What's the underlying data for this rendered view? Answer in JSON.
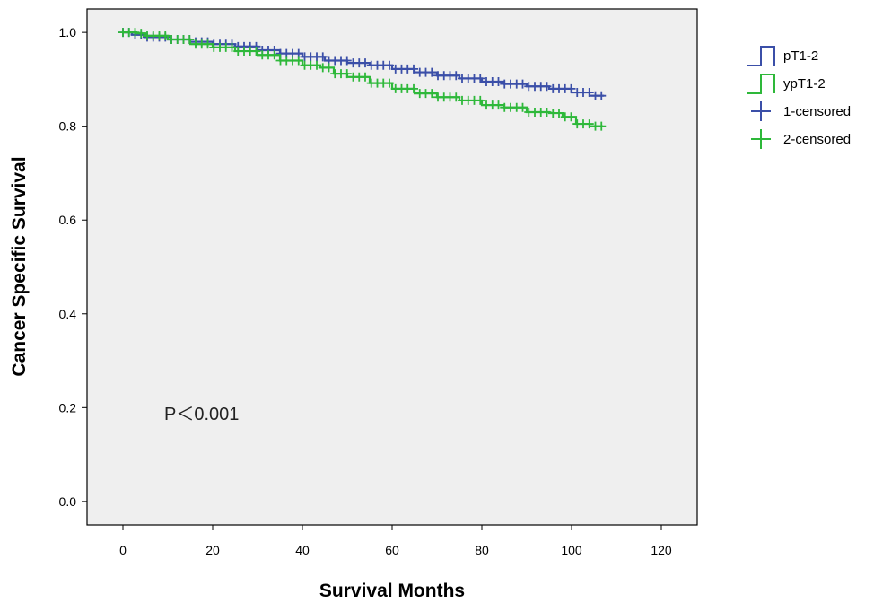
{
  "chart_data": {
    "type": "line",
    "subtype": "kaplan-meier step",
    "xlabel": "Survival Months",
    "ylabel": "Cancer Specific Survival",
    "xlim": [
      -8,
      128
    ],
    "ylim": [
      -0.05,
      1.05
    ],
    "xticks": [
      "0",
      "20",
      "40",
      "60",
      "80",
      "100",
      "120"
    ],
    "yticks": [
      "0.0",
      "0.2",
      "0.4",
      "0.6",
      "0.8",
      "1.0"
    ],
    "xtick_values": [
      0,
      20,
      40,
      60,
      80,
      100,
      120
    ],
    "ytick_values": [
      0.0,
      0.2,
      0.4,
      0.6,
      0.8,
      1.0
    ],
    "grid": false,
    "background": "#efefef",
    "legend_position": "right",
    "annotation": "P＜0.001",
    "series": [
      {
        "name": "pT1-2",
        "color": "#3b4fa8",
        "points": [
          [
            0,
            1.0
          ],
          [
            2,
            0.995
          ],
          [
            5,
            0.99
          ],
          [
            10,
            0.985
          ],
          [
            15,
            0.98
          ],
          [
            20,
            0.975
          ],
          [
            25,
            0.97
          ],
          [
            30,
            0.962
          ],
          [
            35,
            0.955
          ],
          [
            40,
            0.948
          ],
          [
            45,
            0.94
          ],
          [
            50,
            0.935
          ],
          [
            55,
            0.93
          ],
          [
            60,
            0.922
          ],
          [
            65,
            0.915
          ],
          [
            70,
            0.908
          ],
          [
            75,
            0.902
          ],
          [
            80,
            0.895
          ],
          [
            85,
            0.89
          ],
          [
            90,
            0.885
          ],
          [
            95,
            0.88
          ],
          [
            100,
            0.872
          ],
          [
            104,
            0.865
          ],
          [
            107,
            0.863
          ]
        ]
      },
      {
        "name": "ypT1-2",
        "color": "#2eb83a",
        "points": [
          [
            0,
            1.0
          ],
          [
            3,
            0.998
          ],
          [
            5,
            0.993
          ],
          [
            10,
            0.985
          ],
          [
            15,
            0.975
          ],
          [
            20,
            0.968
          ],
          [
            25,
            0.96
          ],
          [
            30,
            0.952
          ],
          [
            35,
            0.94
          ],
          [
            40,
            0.93
          ],
          [
            44,
            0.925
          ],
          [
            47,
            0.912
          ],
          [
            50,
            0.905
          ],
          [
            55,
            0.892
          ],
          [
            60,
            0.88
          ],
          [
            65,
            0.87
          ],
          [
            70,
            0.862
          ],
          [
            75,
            0.855
          ],
          [
            80,
            0.845
          ],
          [
            85,
            0.84
          ],
          [
            90,
            0.83
          ],
          [
            95,
            0.828
          ],
          [
            98,
            0.82
          ],
          [
            101,
            0.805
          ],
          [
            104,
            0.8
          ],
          [
            107,
            0.8
          ]
        ]
      }
    ],
    "legend": [
      {
        "label": "pT1-2",
        "kind": "line",
        "color": "#3b4fa8"
      },
      {
        "label": "ypT1-2",
        "kind": "line",
        "color": "#2eb83a"
      },
      {
        "label": "1-censored",
        "kind": "cross",
        "color": "#3b4fa8"
      },
      {
        "label": "2-censored",
        "kind": "cross",
        "color": "#2eb83a"
      }
    ]
  }
}
